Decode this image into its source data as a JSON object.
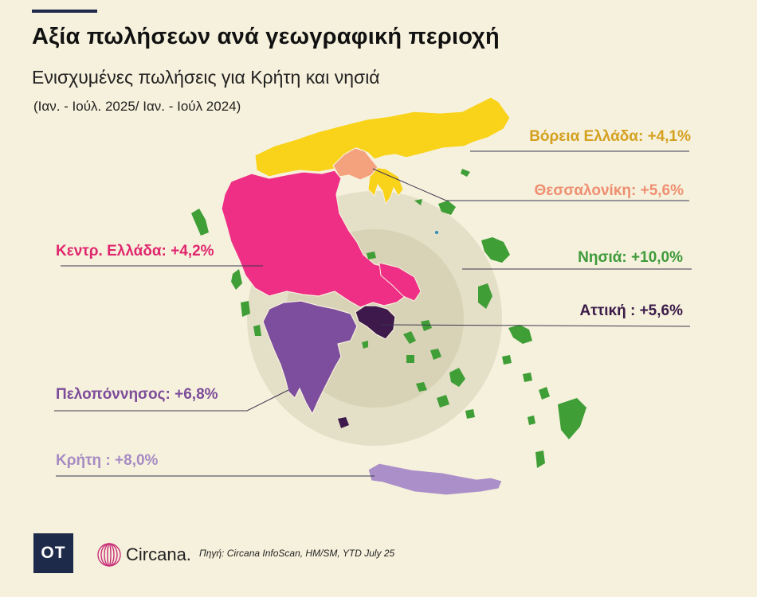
{
  "header": {
    "title": "Αξία πωλήσεων ανά γεωγραφική περιοχή",
    "subtitle": "Ενισχυμένες πωλήσεις για Κρήτη και νησιά",
    "period": "(Ιαν. - Ιούλ. 2025/ Ιαν. - Ιούλ 2024)"
  },
  "regions": [
    {
      "name": "Βόρεια Ελλάδα",
      "label": "Βόρεια Ελλάδα: +4,1%",
      "value": 4.1,
      "color": "#d4a020",
      "fill": "#f9d21a"
    },
    {
      "name": "Θεσσαλονίκη",
      "label": "Θεσσαλονίκη: +5,6%",
      "value": 5.6,
      "color": "#ef8f72",
      "fill": "#f4a27e"
    },
    {
      "name": "Νησιά",
      "label": "Νησιά: +10,0%",
      "value": 10.0,
      "color": "#3e9a3a",
      "fill": "#3f9e36"
    },
    {
      "name": "Αττική",
      "label": "Αττική : +5,6%",
      "value": 5.6,
      "color": "#3a1b4a",
      "fill": "#3e1a4c"
    },
    {
      "name": "Κεντρ. Ελλάδα",
      "label": "Κεντρ. Ελλάδα: +4,2%",
      "value": 4.2,
      "color": "#e0266e",
      "fill": "#ef2f86"
    },
    {
      "name": "Πελοπόννησος",
      "label": "Πελοπόννησος: +6,8%",
      "value": 6.8,
      "color": "#7c4c9a",
      "fill": "#7e4e9e"
    },
    {
      "name": "Κρήτη",
      "label": "Κρήτη : +8,0%",
      "value": 8.0,
      "color": "#a78bc4",
      "fill": "#ab8fc9"
    }
  ],
  "footer": {
    "logo": "OT",
    "brand": "Circana.",
    "source": "Πηγή:  Circana    InfoScan, HM/SM, YTD July 25"
  }
}
